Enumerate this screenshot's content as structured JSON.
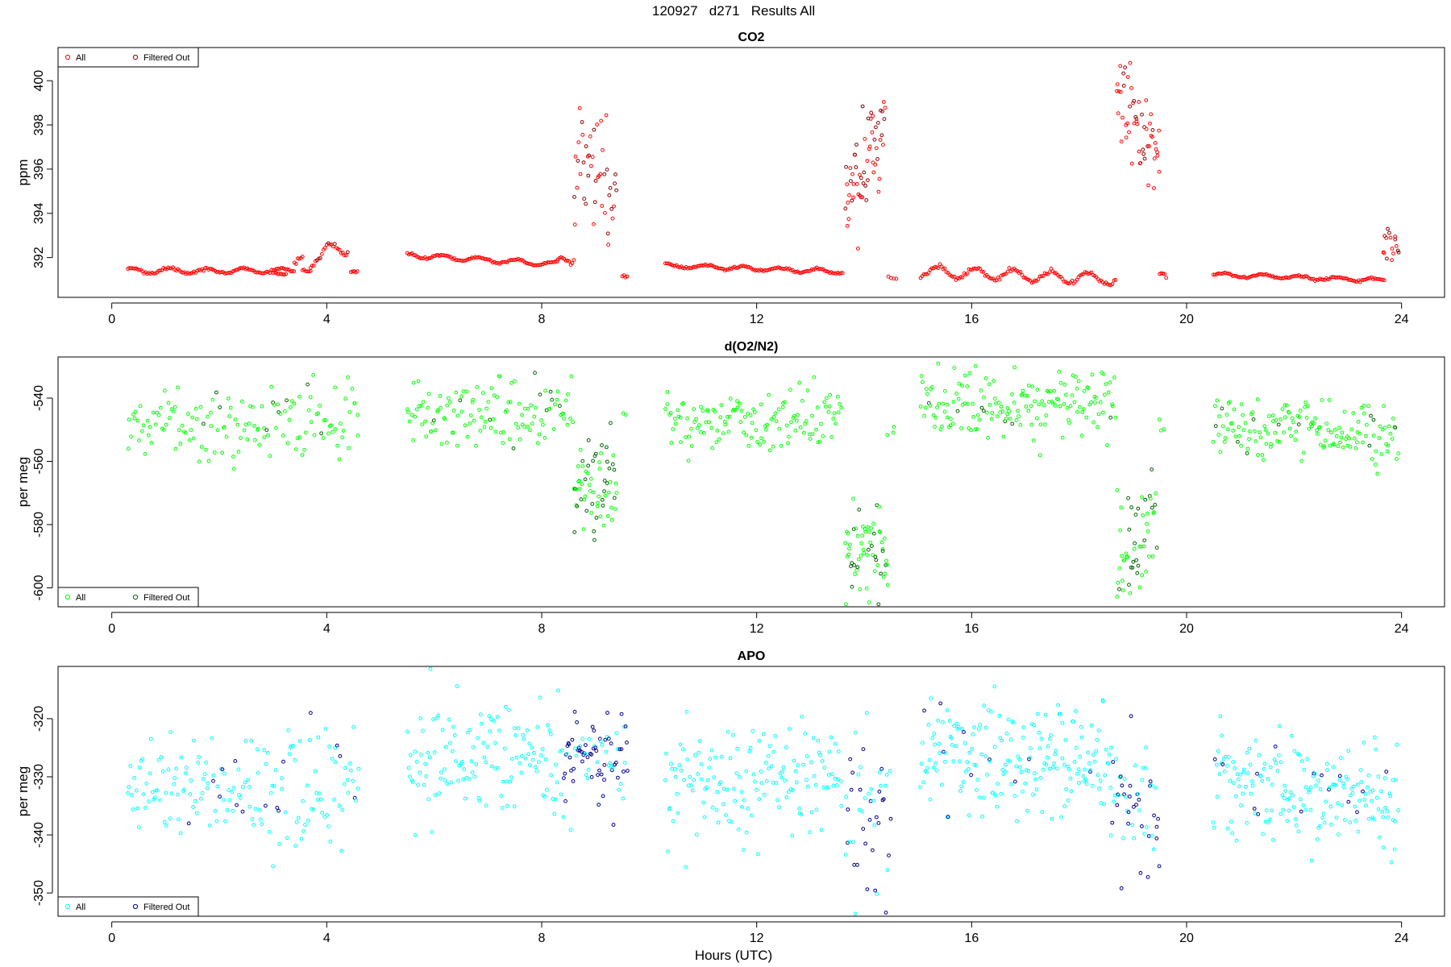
{
  "figure": {
    "title": "120927   d271   Results All",
    "xlabel": "Hours (UTC)"
  },
  "chart_data": [
    {
      "type": "scatter",
      "title": "CO2",
      "xlabel": "",
      "ylabel": "ppm",
      "xlim": [
        -1,
        24.8
      ],
      "ylim": [
        390.2,
        401.5
      ],
      "xticks": [
        0,
        4,
        8,
        12,
        16,
        20,
        24
      ],
      "yticks": [
        392,
        394,
        396,
        398,
        400
      ],
      "legend": {
        "position": "top-left",
        "entries": [
          "All",
          "Filtered Out"
        ]
      },
      "colors": {
        "all": "#ff0000",
        "filtered": "#8b0000"
      },
      "segments": [
        {
          "x0": 0.3,
          "x1": 3.4,
          "mode": "smooth",
          "base": 391.4,
          "slope": 0.0,
          "amp": 0.12,
          "noise": 0.06,
          "step": 0.03
        },
        {
          "x0": 3.0,
          "x1": 3.25,
          "mode": "smooth",
          "base": 391.3,
          "slope": -1.0,
          "amp": 0.1,
          "noise": 0.05,
          "step": 0.03
        },
        {
          "x0": 3.4,
          "x1": 3.55,
          "mode": "smooth",
          "base": 391.8,
          "slope": 0.0,
          "amp": 0.1,
          "noise": 0.1,
          "step": 0.03
        },
        {
          "x0": 3.55,
          "x1": 3.7,
          "mode": "smooth",
          "base": 391.4,
          "slope": 0.0,
          "amp": 0.05,
          "noise": 0.05,
          "step": 0.03
        },
        {
          "x0": 3.7,
          "x1": 4.4,
          "mode": "smooth",
          "base": 392.2,
          "slope": 0.7,
          "amp": 0.35,
          "noise": 0.12,
          "step": 0.03,
          "filteredFrac": 0.2
        },
        {
          "x0": 4.45,
          "x1": 4.6,
          "mode": "smooth",
          "base": 391.4,
          "slope": 0.0,
          "amp": 0.05,
          "noise": 0.05,
          "step": 0.03
        },
        {
          "x0": 5.5,
          "x1": 8.3,
          "mode": "smooth",
          "base": 391.9,
          "slope": -0.15,
          "amp": 0.1,
          "noise": 0.05,
          "step": 0.03
        },
        {
          "x0": 8.3,
          "x1": 8.6,
          "mode": "smooth",
          "base": 391.9,
          "slope": 1.2,
          "amp": 0.3,
          "noise": 0.25,
          "step": 0.03
        },
        {
          "x0": 8.6,
          "x1": 9.4,
          "mode": "scatter",
          "base": 395.8,
          "slope": -1.5,
          "amp": 0.0,
          "noise": 1.4,
          "step": 0.018,
          "filteredFrac": 0.45
        },
        {
          "x0": 9.5,
          "x1": 9.6,
          "mode": "smooth",
          "base": 391.2,
          "slope": 0.0,
          "amp": 0.05,
          "noise": 0.05,
          "step": 0.03
        },
        {
          "x0": 10.3,
          "x1": 13.6,
          "mode": "smooth",
          "base": 391.5,
          "slope": -0.09,
          "amp": 0.08,
          "noise": 0.05,
          "step": 0.03
        },
        {
          "x0": 13.65,
          "x1": 14.4,
          "mode": "scatter",
          "base": 396.0,
          "slope": 5.0,
          "amp": 0.0,
          "noise": 1.3,
          "step": 0.013,
          "filteredFrac": 0.35
        },
        {
          "x0": 14.45,
          "x1": 14.65,
          "mode": "smooth",
          "base": 391.1,
          "slope": 0.0,
          "amp": 0.05,
          "noise": 0.05,
          "step": 0.05
        },
        {
          "x0": 15.05,
          "x1": 18.7,
          "mode": "smooth",
          "base": 391.2,
          "slope": -0.1,
          "amp": 0.25,
          "noise": 0.08,
          "step": 0.03
        },
        {
          "x0": 18.7,
          "x1": 19.5,
          "mode": "scatter",
          "base": 397.8,
          "slope": -3.0,
          "amp": 0.0,
          "noise": 1.2,
          "step": 0.015,
          "filteredFrac": 0.35
        },
        {
          "x0": 19.5,
          "x1": 19.65,
          "mode": "smooth",
          "base": 391.2,
          "slope": -0.8,
          "amp": 0.05,
          "noise": 0.1,
          "step": 0.03
        },
        {
          "x0": 20.5,
          "x1": 23.7,
          "mode": "smooth",
          "base": 391.1,
          "slope": -0.08,
          "amp": 0.08,
          "noise": 0.05,
          "step": 0.03
        },
        {
          "x0": 23.65,
          "x1": 23.95,
          "mode": "scatter",
          "base": 392.6,
          "slope": 0.0,
          "amp": 0.0,
          "noise": 0.5,
          "step": 0.02,
          "filteredFrac": 0.3
        }
      ]
    },
    {
      "type": "scatter",
      "title": "d(O2/N2)",
      "xlabel": "",
      "ylabel": "per meg",
      "xlim": [
        -1,
        24.8
      ],
      "ylim": [
        -606,
        -527
      ],
      "xticks": [
        0,
        4,
        8,
        12,
        16,
        20,
        24
      ],
      "yticks": [
        -600,
        -580,
        -560,
        -540
      ],
      "legend": {
        "position": "bottom-left",
        "entries": [
          "All",
          "Filtered Out"
        ]
      },
      "colors": {
        "all": "#00ff00",
        "filtered": "#006400"
      },
      "segments": [
        {
          "x0": 0.3,
          "x1": 4.6,
          "mode": "scatter",
          "base": -548,
          "slope": 0.0,
          "amp": 0.0,
          "noise": 5.5,
          "step": 0.03,
          "filteredFrac": 0.07
        },
        {
          "x0": 5.5,
          "x1": 8.6,
          "mode": "scatter",
          "base": -545,
          "slope": 0.0,
          "amp": 0.0,
          "noise": 5.5,
          "step": 0.025,
          "filteredFrac": 0.05
        },
        {
          "x0": 8.6,
          "x1": 9.4,
          "mode": "scatter",
          "base": -568,
          "slope": 8.0,
          "amp": 0.0,
          "noise": 9.0,
          "step": 0.012,
          "filteredFrac": 0.5
        },
        {
          "x0": 9.5,
          "x1": 9.6,
          "mode": "scatter",
          "base": -545,
          "slope": 0.0,
          "amp": 0.0,
          "noise": 1.5,
          "step": 0.05
        },
        {
          "x0": 10.3,
          "x1": 13.6,
          "mode": "scatter",
          "base": -547,
          "slope": 0.0,
          "amp": 0.0,
          "noise": 5.0,
          "step": 0.025
        },
        {
          "x0": 13.65,
          "x1": 14.45,
          "mode": "scatter",
          "base": -588,
          "slope": 0.0,
          "amp": 0.0,
          "noise": 7.5,
          "step": 0.013,
          "filteredFrac": 0.35
        },
        {
          "x0": 14.45,
          "x1": 14.6,
          "mode": "scatter",
          "base": -548,
          "slope": 0.0,
          "amp": 0.0,
          "noise": 4.0,
          "step": 0.06
        },
        {
          "x0": 15.05,
          "x1": 18.7,
          "mode": "scatter",
          "base": -542,
          "slope": 0.0,
          "amp": 0.0,
          "noise": 5.5,
          "step": 0.022,
          "filteredFrac": 0.05
        },
        {
          "x0": 18.7,
          "x1": 19.45,
          "mode": "scatter",
          "base": -586,
          "slope": 22.0,
          "amp": 0.0,
          "noise": 9.0,
          "step": 0.014,
          "filteredFrac": 0.45
        },
        {
          "x0": 19.5,
          "x1": 19.6,
          "mode": "scatter",
          "base": -548,
          "slope": 0.0,
          "amp": 0.0,
          "noise": 2.0,
          "step": 0.04
        },
        {
          "x0": 20.5,
          "x1": 23.95,
          "mode": "scatter",
          "base": -550,
          "slope": -1.0,
          "amp": 0.0,
          "noise": 5.0,
          "step": 0.022,
          "filteredFrac": 0.06
        }
      ]
    },
    {
      "type": "scatter",
      "title": "APO",
      "xlabel": "",
      "ylabel": "per meg",
      "xlim": [
        -1,
        24.8
      ],
      "ylim": [
        -354,
        -311
      ],
      "xticks": [
        0,
        4,
        8,
        12,
        16,
        20,
        24
      ],
      "yticks": [
        -350,
        -340,
        -330,
        -320
      ],
      "legend": {
        "position": "bottom-left",
        "entries": [
          "All",
          "Filtered Out"
        ]
      },
      "colors": {
        "all": "#00ffff",
        "filtered": "#00008b"
      },
      "segments": [
        {
          "x0": 0.3,
          "x1": 4.6,
          "mode": "scatter",
          "base": -332,
          "slope": 0.0,
          "amp": 0.0,
          "noise": 5.0,
          "step": 0.025,
          "filteredFrac": 0.08
        },
        {
          "x0": 5.5,
          "x1": 8.4,
          "mode": "scatter",
          "base": -327,
          "slope": 0.0,
          "amp": 0.0,
          "noise": 5.0,
          "step": 0.022
        },
        {
          "x0": 8.4,
          "x1": 9.6,
          "mode": "scatter",
          "base": -326,
          "slope": 0.0,
          "amp": 0.0,
          "noise": 3.8,
          "step": 0.014,
          "filteredFrac": 0.6
        },
        {
          "x0": 10.3,
          "x1": 13.6,
          "mode": "scatter",
          "base": -331,
          "slope": 0.0,
          "amp": 0.0,
          "noise": 4.8,
          "step": 0.022
        },
        {
          "x0": 13.65,
          "x1": 14.5,
          "mode": "scatter",
          "base": -335,
          "slope": 0.0,
          "amp": 0.0,
          "noise": 8.0,
          "step": 0.018,
          "filteredFrac": 0.55
        },
        {
          "x0": 15.05,
          "x1": 18.6,
          "mode": "scatter",
          "base": -327,
          "slope": 0.0,
          "amp": 0.0,
          "noise": 5.0,
          "step": 0.018,
          "filteredFrac": 0.06
        },
        {
          "x0": 18.6,
          "x1": 19.5,
          "mode": "scatter",
          "base": -334,
          "slope": -4.0,
          "amp": 0.0,
          "noise": 5.5,
          "step": 0.017,
          "filteredFrac": 0.5
        },
        {
          "x0": 20.5,
          "x1": 23.95,
          "mode": "scatter",
          "base": -333,
          "slope": -1.5,
          "amp": 0.0,
          "noise": 4.8,
          "step": 0.018,
          "filteredFrac": 0.07
        }
      ]
    }
  ]
}
